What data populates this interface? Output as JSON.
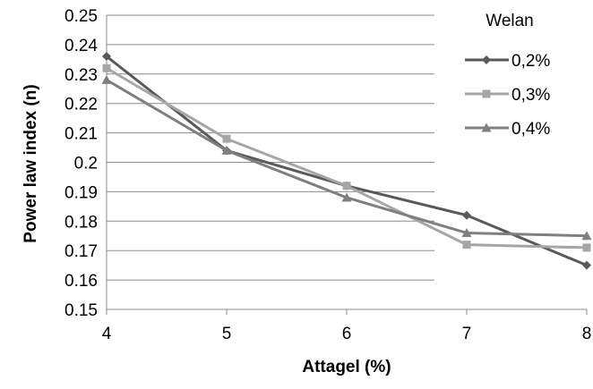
{
  "chart_data": {
    "type": "line",
    "xlabel": "Attagel (%)",
    "ylabel": "Power law index (n)",
    "x": [
      4,
      5,
      6,
      7,
      8
    ],
    "xlim": [
      4,
      8
    ],
    "ylim": [
      0.15,
      0.25
    ],
    "yticks": [
      "0.15",
      "0.16",
      "0.17",
      "0.18",
      "0.19",
      "0.2",
      "0.21",
      "0.22",
      "0.23",
      "0.24",
      "0.25"
    ],
    "xticks": [
      "4",
      "5",
      "6",
      "7",
      "8"
    ],
    "grid": "horizontal",
    "legend": {
      "title": "Welan",
      "placement": "top-right"
    },
    "series": [
      {
        "name": "0,2%",
        "values": [
          0.236,
          0.204,
          0.192,
          0.182,
          0.165
        ],
        "color": "#595959",
        "marker": "diamond"
      },
      {
        "name": "0,3%",
        "values": [
          0.232,
          0.208,
          0.192,
          0.172,
          0.171
        ],
        "color": "#a6a6a6",
        "marker": "square"
      },
      {
        "name": "0,4%",
        "values": [
          0.228,
          0.204,
          0.188,
          0.176,
          0.175
        ],
        "color": "#7f7f7f",
        "marker": "triangle"
      }
    ]
  }
}
